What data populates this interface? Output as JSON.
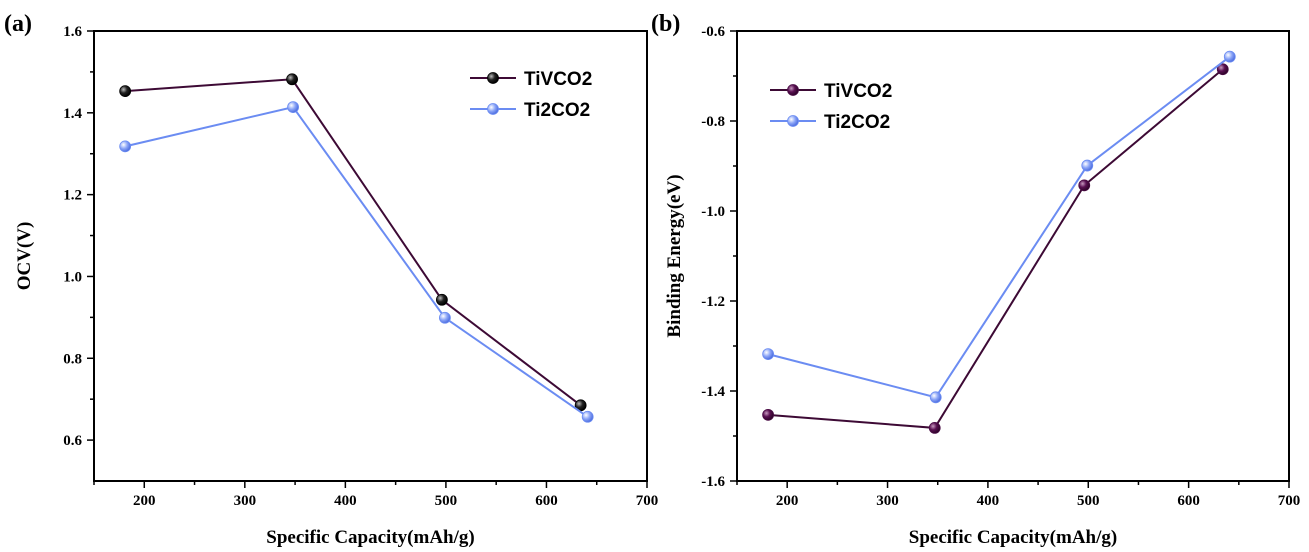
{
  "chart_data": [
    {
      "type": "line",
      "panel_label": "(a)",
      "xlabel": "Specific Capacity(mAh/g)",
      "ylabel": "OCV(V)",
      "xlim": [
        150,
        700
      ],
      "ylim": [
        0.5,
        1.6
      ],
      "xticks": [
        200,
        300,
        400,
        500,
        600,
        700
      ],
      "yticks": [
        0.6,
        0.8,
        1.0,
        1.2,
        1.4,
        1.6
      ],
      "ytick_labels": [
        "0.6",
        "0.8",
        "1.0",
        "1.2",
        "1.4",
        "1.6"
      ],
      "grid": false,
      "legend_position": "top-right",
      "series": [
        {
          "name": "TiVCO2",
          "color": "#3d0a35",
          "marker_color": "#000000",
          "x": [
            181,
            347,
            496,
            634
          ],
          "y": [
            1.453,
            1.482,
            0.943,
            0.685
          ]
        },
        {
          "name": "Ti2CO2",
          "color": "#6b8cf2",
          "marker_color": "#6b8cf2",
          "x": [
            181,
            348,
            499,
            641
          ],
          "y": [
            1.318,
            1.414,
            0.899,
            0.657
          ]
        }
      ]
    },
    {
      "type": "line",
      "panel_label": "(b)",
      "xlabel": "Specific Capacity(mAh/g)",
      "ylabel": "Binding Energy(eV)",
      "xlim": [
        150,
        700
      ],
      "ylim": [
        -1.6,
        -0.6
      ],
      "xticks": [
        200,
        300,
        400,
        500,
        600,
        700
      ],
      "yticks": [
        -1.6,
        -1.4,
        -1.2,
        -1.0,
        -0.8,
        -0.6
      ],
      "ytick_labels": [
        "-1.6",
        "-1.4",
        "-1.2",
        "-1.0",
        "-0.8",
        "-0.6"
      ],
      "grid": false,
      "legend_position": "top-left",
      "series": [
        {
          "name": "TiVCO2",
          "color": "#3d0a35",
          "marker_color": "#4a0c45",
          "x": [
            181,
            347,
            496,
            634
          ],
          "y": [
            -1.453,
            -1.482,
            -0.943,
            -0.685
          ]
        },
        {
          "name": "Ti2CO2",
          "color": "#6b8cf2",
          "marker_color": "#6b8cf2",
          "x": [
            181,
            348,
            499,
            641
          ],
          "y": [
            -1.318,
            -1.414,
            -0.899,
            -0.657
          ]
        }
      ]
    }
  ]
}
